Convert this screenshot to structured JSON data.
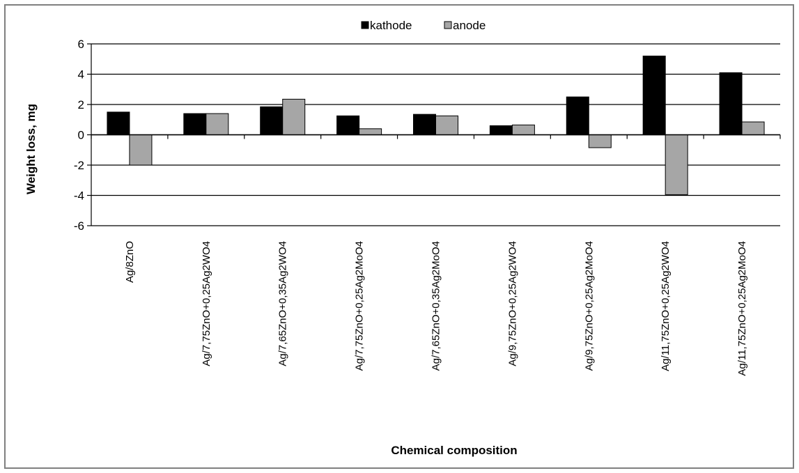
{
  "chart_data": {
    "type": "bar",
    "title": "",
    "xlabel": "Chemical composition",
    "ylabel": "Weight loss, mg",
    "ylim": [
      -6,
      6
    ],
    "yticks": [
      -6,
      -4,
      -2,
      0,
      2,
      4,
      6
    ],
    "grid": true,
    "legend": "top-center",
    "categories": [
      "Ag/8ZnO",
      "Ag/7,75ZnO+0,25Ag2WO4",
      "Ag/7,65ZnO+0,35Ag2WO4",
      "Ag/7,75ZnO+0,25Ag2MoO4",
      "Ag/7,65ZnO+0,35Ag2MoO4",
      "Ag/9,75ZnO+0,25Ag2WO4",
      "Ag/9,75ZnO+0,25Ag2MoO4",
      "Ag/11,75ZnO+0,25Ag2WO4",
      "Ag/11,75ZnO+0,25Ag2MoO4"
    ],
    "series": [
      {
        "name": "kathode",
        "color": "#000000",
        "values": [
          1.5,
          1.4,
          1.85,
          1.25,
          1.35,
          0.6,
          2.5,
          5.2,
          4.1
        ]
      },
      {
        "name": "anode",
        "color": "#a6a6a6",
        "values": [
          -2.0,
          1.4,
          2.35,
          0.4,
          1.25,
          0.65,
          -0.85,
          -3.95,
          0.85
        ]
      }
    ]
  }
}
